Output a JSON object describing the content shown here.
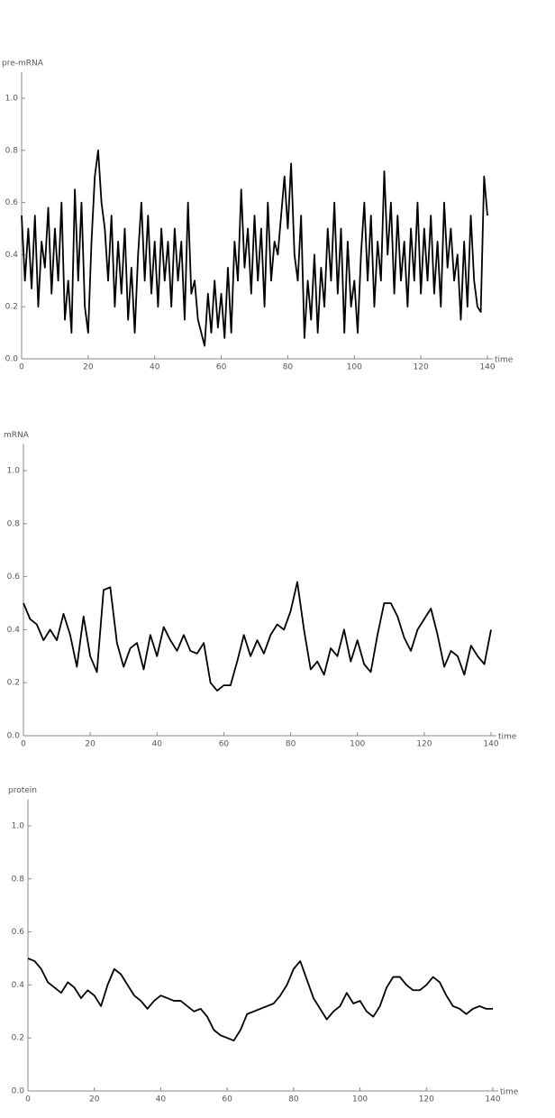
{
  "chart_data": [
    {
      "type": "line",
      "y_label": "pre-mRNA",
      "x_label": "time",
      "color": "#000000",
      "xlim": [
        0,
        140
      ],
      "ylim": [
        0,
        1.1
      ],
      "xticks": [
        0,
        20,
        40,
        60,
        80,
        100,
        120,
        140
      ],
      "yticks": [
        {
          "value": 0,
          "label": "0.0"
        },
        0.2,
        0.4,
        0.6,
        0.8,
        {
          "value": 1,
          "label": "1.0"
        }
      ],
      "x": [
        0,
        1,
        2,
        3,
        4,
        5,
        6,
        7,
        8,
        9,
        10,
        11,
        12,
        13,
        14,
        15,
        16,
        17,
        18,
        19,
        20,
        21,
        22,
        23,
        24,
        25,
        26,
        27,
        28,
        29,
        30,
        31,
        32,
        33,
        34,
        35,
        36,
        37,
        38,
        39,
        40,
        41,
        42,
        43,
        44,
        45,
        46,
        47,
        48,
        49,
        50,
        51,
        52,
        53,
        54,
        55,
        56,
        57,
        58,
        59,
        60,
        61,
        62,
        63,
        64,
        65,
        66,
        67,
        68,
        69,
        70,
        71,
        72,
        73,
        74,
        75,
        76,
        77,
        78,
        79,
        80,
        81,
        82,
        83,
        84,
        85,
        86,
        87,
        88,
        89,
        90,
        91,
        92,
        93,
        94,
        95,
        96,
        97,
        98,
        99,
        100,
        101,
        102,
        103,
        104,
        105,
        106,
        107,
        108,
        109,
        110,
        111,
        112,
        113,
        114,
        115,
        116,
        117,
        118,
        119,
        120,
        121,
        122,
        123,
        124,
        125,
        126,
        127,
        128,
        129,
        130,
        131,
        132,
        133,
        134,
        135,
        136,
        137,
        138,
        139,
        140
      ],
      "values": [
        0.55,
        0.3,
        0.5,
        0.27,
        0.55,
        0.2,
        0.45,
        0.35,
        0.58,
        0.25,
        0.5,
        0.3,
        0.6,
        0.15,
        0.3,
        0.1,
        0.65,
        0.3,
        0.6,
        0.2,
        0.1,
        0.45,
        0.7,
        0.8,
        0.6,
        0.5,
        0.3,
        0.55,
        0.2,
        0.45,
        0.25,
        0.5,
        0.15,
        0.35,
        0.1,
        0.4,
        0.6,
        0.3,
        0.55,
        0.25,
        0.45,
        0.2,
        0.5,
        0.3,
        0.45,
        0.2,
        0.5,
        0.3,
        0.45,
        0.15,
        0.6,
        0.25,
        0.3,
        0.15,
        0.1,
        0.05,
        0.25,
        0.1,
        0.3,
        0.12,
        0.25,
        0.08,
        0.35,
        0.1,
        0.45,
        0.3,
        0.65,
        0.35,
        0.5,
        0.25,
        0.55,
        0.3,
        0.5,
        0.2,
        0.6,
        0.3,
        0.45,
        0.4,
        0.55,
        0.7,
        0.5,
        0.75,
        0.4,
        0.3,
        0.55,
        0.08,
        0.3,
        0.15,
        0.4,
        0.1,
        0.35,
        0.2,
        0.5,
        0.3,
        0.6,
        0.25,
        0.5,
        0.1,
        0.45,
        0.2,
        0.3,
        0.1,
        0.4,
        0.6,
        0.3,
        0.55,
        0.2,
        0.45,
        0.3,
        0.72,
        0.4,
        0.6,
        0.25,
        0.55,
        0.3,
        0.45,
        0.2,
        0.5,
        0.3,
        0.6,
        0.25,
        0.5,
        0.3,
        0.55,
        0.25,
        0.45,
        0.2,
        0.6,
        0.35,
        0.5,
        0.3,
        0.4,
        0.15,
        0.45,
        0.2,
        0.55,
        0.3,
        0.2,
        0.18,
        0.7,
        0.55
      ]
    },
    {
      "type": "line",
      "y_label": "mRNA",
      "x_label": "time",
      "color": "#000000",
      "xlim": [
        0,
        140
      ],
      "ylim": [
        0,
        1.1
      ],
      "xticks": [
        0,
        20,
        40,
        60,
        80,
        100,
        120,
        140
      ],
      "yticks": [
        {
          "value": 0,
          "label": "0.0"
        },
        0.2,
        0.4,
        0.6,
        0.8,
        {
          "value": 1,
          "label": "1.0"
        }
      ],
      "x": [
        0,
        2,
        4,
        6,
        8,
        10,
        12,
        14,
        16,
        18,
        20,
        22,
        24,
        26,
        28,
        30,
        32,
        34,
        36,
        38,
        40,
        42,
        44,
        46,
        48,
        50,
        52,
        54,
        56,
        58,
        60,
        62,
        64,
        66,
        68,
        70,
        72,
        74,
        76,
        78,
        80,
        82,
        84,
        86,
        88,
        90,
        92,
        94,
        96,
        98,
        100,
        102,
        104,
        106,
        108,
        110,
        112,
        114,
        116,
        118,
        120,
        122,
        124,
        126,
        128,
        130,
        132,
        134,
        136,
        138,
        140
      ],
      "values": [
        0.5,
        0.44,
        0.42,
        0.36,
        0.4,
        0.36,
        0.46,
        0.38,
        0.26,
        0.45,
        0.3,
        0.24,
        0.55,
        0.56,
        0.35,
        0.26,
        0.33,
        0.35,
        0.25,
        0.38,
        0.3,
        0.41,
        0.36,
        0.32,
        0.38,
        0.32,
        0.31,
        0.35,
        0.2,
        0.17,
        0.19,
        0.19,
        0.28,
        0.38,
        0.3,
        0.36,
        0.31,
        0.38,
        0.42,
        0.4,
        0.47,
        0.58,
        0.4,
        0.25,
        0.28,
        0.23,
        0.33,
        0.3,
        0.4,
        0.28,
        0.36,
        0.27,
        0.24,
        0.38,
        0.5,
        0.5,
        0.45,
        0.37,
        0.32,
        0.4,
        0.44,
        0.48,
        0.38,
        0.26,
        0.32,
        0.3,
        0.23,
        0.34,
        0.3,
        0.27,
        0.4
      ]
    },
    {
      "type": "line",
      "y_label": "protein",
      "x_label": "time",
      "color": "#000000",
      "xlim": [
        0,
        140
      ],
      "ylim": [
        0,
        1.1
      ],
      "xticks": [
        0,
        20,
        40,
        60,
        80,
        100,
        120,
        140
      ],
      "yticks": [
        {
          "value": 0,
          "label": "0.0"
        },
        0.2,
        0.4,
        0.6,
        0.8,
        {
          "value": 1,
          "label": "1.0"
        }
      ],
      "x": [
        0,
        2,
        4,
        6,
        8,
        10,
        12,
        14,
        16,
        18,
        20,
        22,
        24,
        26,
        28,
        30,
        32,
        34,
        36,
        38,
        40,
        42,
        44,
        46,
        48,
        50,
        52,
        54,
        56,
        58,
        60,
        62,
        64,
        66,
        68,
        70,
        72,
        74,
        76,
        78,
        80,
        82,
        84,
        86,
        88,
        90,
        92,
        94,
        96,
        98,
        100,
        102,
        104,
        106,
        108,
        110,
        112,
        114,
        116,
        118,
        120,
        122,
        124,
        126,
        128,
        130,
        132,
        134,
        136,
        138,
        140
      ],
      "values": [
        0.5,
        0.49,
        0.46,
        0.41,
        0.39,
        0.37,
        0.41,
        0.39,
        0.35,
        0.38,
        0.36,
        0.32,
        0.4,
        0.46,
        0.44,
        0.4,
        0.36,
        0.34,
        0.31,
        0.34,
        0.36,
        0.35,
        0.34,
        0.34,
        0.32,
        0.3,
        0.31,
        0.28,
        0.23,
        0.21,
        0.2,
        0.19,
        0.23,
        0.29,
        0.3,
        0.31,
        0.32,
        0.33,
        0.36,
        0.4,
        0.46,
        0.49,
        0.42,
        0.35,
        0.31,
        0.27,
        0.3,
        0.32,
        0.37,
        0.33,
        0.34,
        0.3,
        0.28,
        0.32,
        0.39,
        0.43,
        0.43,
        0.4,
        0.38,
        0.38,
        0.4,
        0.43,
        0.41,
        0.36,
        0.32,
        0.31,
        0.29,
        0.31,
        0.32,
        0.31,
        0.31
      ]
    }
  ]
}
